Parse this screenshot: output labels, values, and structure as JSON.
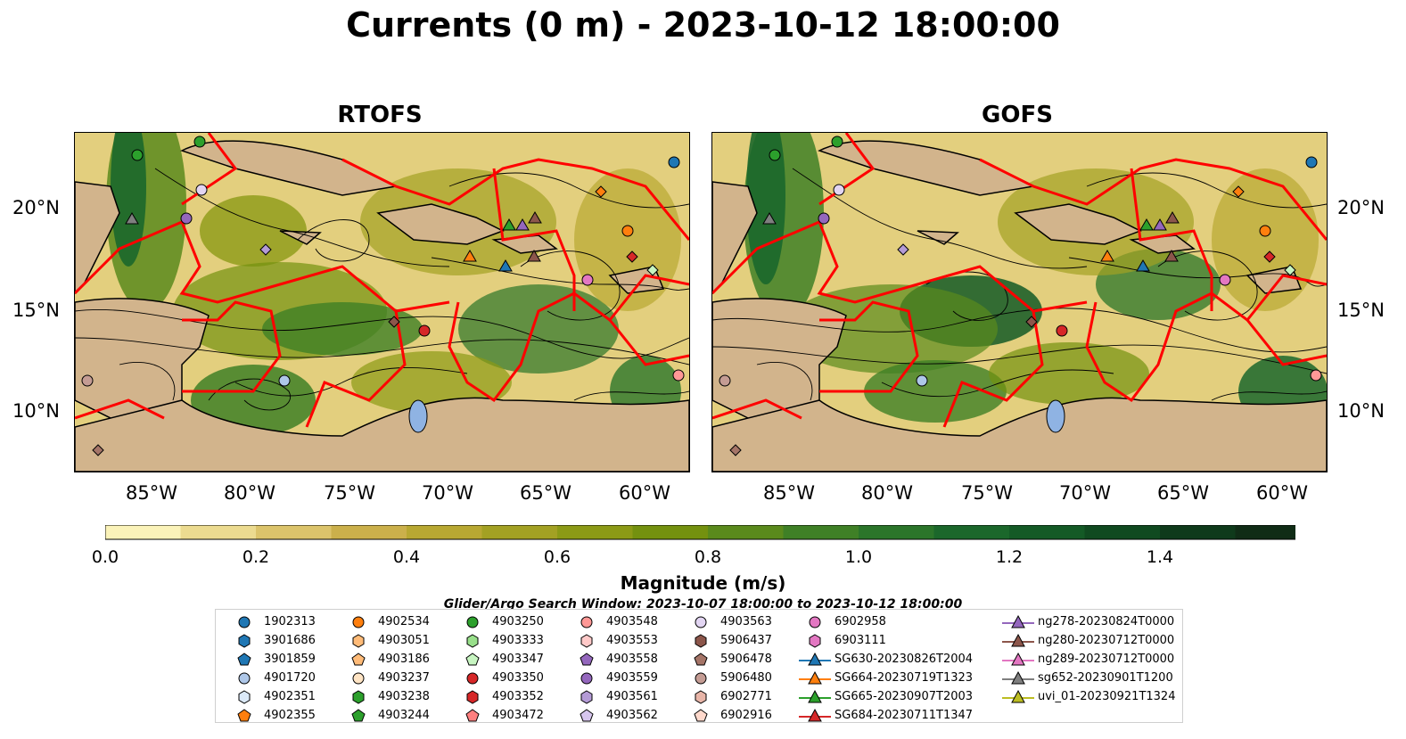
{
  "title": "Currents (0 m) - 2023-10-12 18:00:00",
  "panels": [
    {
      "id": "rtofs",
      "label": "RTOFS"
    },
    {
      "id": "gofs",
      "label": "GOFS"
    }
  ],
  "lat_ticks": [
    "20°N",
    "15°N",
    "10°N"
  ],
  "lon_ticks": [
    "85°W",
    "80°W",
    "75°W",
    "70°W",
    "65°W",
    "60°W"
  ],
  "colorbar": {
    "label": "Magnitude (m/s)",
    "ticks": [
      "0.0",
      "0.2",
      "0.4",
      "0.6",
      "0.8",
      "1.0",
      "1.2",
      "1.4"
    ],
    "colors": [
      "#fbf3b9",
      "#ecdb90",
      "#dcc46b",
      "#cbb04b",
      "#b8a832",
      "#a3a123",
      "#8c9a16",
      "#74910f",
      "#5a8a1c",
      "#3f8026",
      "#2b752a",
      "#1b672b",
      "#145a26",
      "#104a20",
      "#0f3a1b",
      "#102c16"
    ]
  },
  "search_window": "Glider/Argo Search Window: 2023-10-07 18:00:00 to 2023-10-12 18:00:00",
  "colors": {
    "land": "#d2b48c",
    "sea_low": "#e9d98f",
    "eez": "#ff0000",
    "lake": "#8fb3e3"
  },
  "legend": [
    [
      {
        "label": "1902313",
        "marker": "circle",
        "color": "#1f77b4"
      },
      {
        "label": "3901686",
        "marker": "hexagon",
        "color": "#1f77b4"
      },
      {
        "label": "3901859",
        "marker": "pentagon",
        "color": "#1f77b4"
      },
      {
        "label": "4901720",
        "marker": "circle",
        "color": "#aec7e8"
      },
      {
        "label": "4902351",
        "marker": "hexagon",
        "color": "#dbe9f8"
      },
      {
        "label": "4902355",
        "marker": "pentagon",
        "color": "#ff7f0e"
      }
    ],
    [
      {
        "label": "4902534",
        "marker": "circle",
        "color": "#ff7f0e"
      },
      {
        "label": "4903051",
        "marker": "hexagon",
        "color": "#ffbb78"
      },
      {
        "label": "4903186",
        "marker": "pentagon",
        "color": "#ffbb78"
      },
      {
        "label": "4903237",
        "marker": "circle",
        "color": "#ffe4c4"
      },
      {
        "label": "4903238",
        "marker": "hexagon",
        "color": "#2ca02c"
      },
      {
        "label": "4903244",
        "marker": "pentagon",
        "color": "#2ca02c"
      }
    ],
    [
      {
        "label": "4903250",
        "marker": "circle",
        "color": "#2ca02c"
      },
      {
        "label": "4903333",
        "marker": "hexagon",
        "color": "#98df8a"
      },
      {
        "label": "4903347",
        "marker": "pentagon",
        "color": "#c7f5c1"
      },
      {
        "label": "4903350",
        "marker": "circle",
        "color": "#d62728"
      },
      {
        "label": "4903352",
        "marker": "hexagon",
        "color": "#d62728"
      },
      {
        "label": "4903472",
        "marker": "pentagon",
        "color": "#ff7f7f"
      }
    ],
    [
      {
        "label": "4903548",
        "marker": "circle",
        "color": "#ff9896"
      },
      {
        "label": "4903553",
        "marker": "hexagon",
        "color": "#ffc9c8"
      },
      {
        "label": "4903558",
        "marker": "pentagon",
        "color": "#9467bd"
      },
      {
        "label": "4903559",
        "marker": "circle",
        "color": "#9467bd"
      },
      {
        "label": "4903561",
        "marker": "hexagon",
        "color": "#b49bd6"
      },
      {
        "label": "4903562",
        "marker": "pentagon",
        "color": "#d7c6ee"
      }
    ],
    [
      {
        "label": "4903563",
        "marker": "circle",
        "color": "#e2d5f2"
      },
      {
        "label": "5906437",
        "marker": "hexagon",
        "color": "#8c564b"
      },
      {
        "label": "5906478",
        "marker": "pentagon",
        "color": "#a57568"
      },
      {
        "label": "5906480",
        "marker": "circle",
        "color": "#c49c94"
      },
      {
        "label": "6902771",
        "marker": "hexagon",
        "color": "#e8b5a8"
      },
      {
        "label": "6902916",
        "marker": "pentagon",
        "color": "#ffd9cc"
      }
    ],
    [
      {
        "label": "6902958",
        "marker": "circle",
        "color": "#e377c2"
      },
      {
        "label": "6903111",
        "marker": "hexagon",
        "color": "#e377c2"
      },
      {
        "label": "SG630-20230826T2004",
        "marker": "triangle",
        "color": "#1f77b4"
      },
      {
        "label": "SG664-20230719T1323",
        "marker": "triangle",
        "color": "#ff7f0e"
      },
      {
        "label": "SG665-20230907T2003",
        "marker": "triangle",
        "color": "#2ca02c"
      },
      {
        "label": "SG684-20230711T1347",
        "marker": "triangle",
        "color": "#d62728"
      }
    ],
    [
      {
        "label": "ng278-20230824T0000",
        "marker": "triangle",
        "color": "#9467bd"
      },
      {
        "label": "ng280-20230712T0000",
        "marker": "triangle",
        "color": "#8c564b"
      },
      {
        "label": "ng289-20230712T0000",
        "marker": "triangle",
        "color": "#e377c2"
      },
      {
        "label": "sg652-20230901T1200",
        "marker": "triangle",
        "color": "#7f7f7f"
      },
      {
        "label": "uvi_01-20230921T1324",
        "marker": "triangle",
        "color": "#bcbd22"
      }
    ]
  ]
}
